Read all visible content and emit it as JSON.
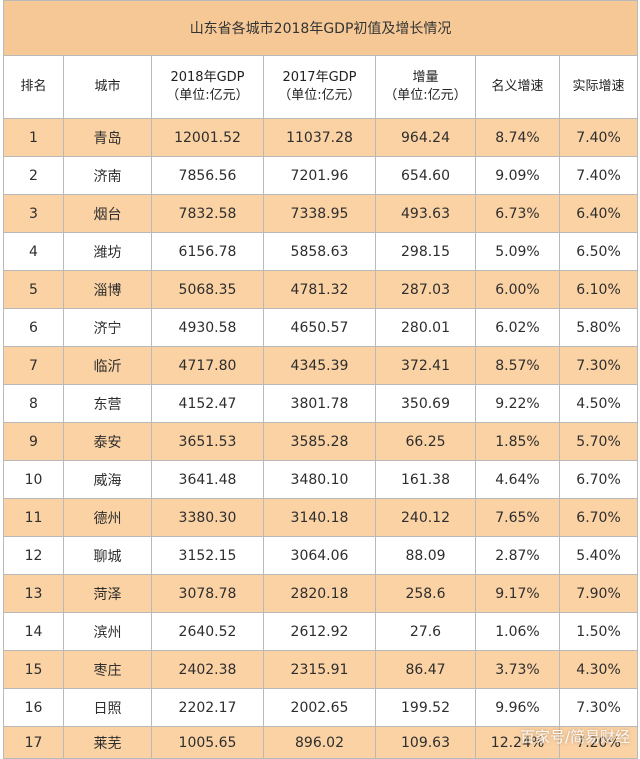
{
  "table": {
    "title": "山东省各城市2018年GDP初值及增长情况",
    "headers": [
      {
        "line1": "排名",
        "line2": ""
      },
      {
        "line1": "城市",
        "line2": ""
      },
      {
        "line1": "2018年GDP",
        "line2": "（单位:亿元）"
      },
      {
        "line1": "2017年GDP",
        "line2": "（单位:亿元）"
      },
      {
        "line1": "增量",
        "line2": "（单位:亿元）"
      },
      {
        "line1": "名义增速",
        "line2": ""
      },
      {
        "line1": "实际增速",
        "line2": ""
      }
    ],
    "rows": [
      {
        "rank": "1",
        "city": "青岛",
        "gdp2018": "12001.52",
        "gdp2017": "11037.28",
        "increase": "964.24",
        "nominal": "8.74%",
        "real": "7.40%"
      },
      {
        "rank": "2",
        "city": "济南",
        "gdp2018": "7856.56",
        "gdp2017": "7201.96",
        "increase": "654.60",
        "nominal": "9.09%",
        "real": "7.40%"
      },
      {
        "rank": "3",
        "city": "烟台",
        "gdp2018": "7832.58",
        "gdp2017": "7338.95",
        "increase": "493.63",
        "nominal": "6.73%",
        "real": "6.40%"
      },
      {
        "rank": "4",
        "city": "潍坊",
        "gdp2018": "6156.78",
        "gdp2017": "5858.63",
        "increase": "298.15",
        "nominal": "5.09%",
        "real": "6.50%"
      },
      {
        "rank": "5",
        "city": "淄博",
        "gdp2018": "5068.35",
        "gdp2017": "4781.32",
        "increase": "287.03",
        "nominal": "6.00%",
        "real": "6.10%"
      },
      {
        "rank": "6",
        "city": "济宁",
        "gdp2018": "4930.58",
        "gdp2017": "4650.57",
        "increase": "280.01",
        "nominal": "6.02%",
        "real": "5.80%"
      },
      {
        "rank": "7",
        "city": "临沂",
        "gdp2018": "4717.80",
        "gdp2017": "4345.39",
        "increase": "372.41",
        "nominal": "8.57%",
        "real": "7.30%"
      },
      {
        "rank": "8",
        "city": "东营",
        "gdp2018": "4152.47",
        "gdp2017": "3801.78",
        "increase": "350.69",
        "nominal": "9.22%",
        "real": "4.50%"
      },
      {
        "rank": "9",
        "city": "泰安",
        "gdp2018": "3651.53",
        "gdp2017": "3585.28",
        "increase": "66.25",
        "nominal": "1.85%",
        "real": "5.70%"
      },
      {
        "rank": "10",
        "city": "威海",
        "gdp2018": "3641.48",
        "gdp2017": "3480.10",
        "increase": "161.38",
        "nominal": "4.64%",
        "real": "6.70%"
      },
      {
        "rank": "11",
        "city": "德州",
        "gdp2018": "3380.30",
        "gdp2017": "3140.18",
        "increase": "240.12",
        "nominal": "7.65%",
        "real": "6.70%"
      },
      {
        "rank": "12",
        "city": "聊城",
        "gdp2018": "3152.15",
        "gdp2017": "3064.06",
        "increase": "88.09",
        "nominal": "2.87%",
        "real": "5.40%"
      },
      {
        "rank": "13",
        "city": "菏泽",
        "gdp2018": "3078.78",
        "gdp2017": "2820.18",
        "increase": "258.6",
        "nominal": "9.17%",
        "real": "7.90%"
      },
      {
        "rank": "14",
        "city": "滨州",
        "gdp2018": "2640.52",
        "gdp2017": "2612.92",
        "increase": "27.6",
        "nominal": "1.06%",
        "real": "1.50%"
      },
      {
        "rank": "15",
        "city": "枣庄",
        "gdp2018": "2402.38",
        "gdp2017": "2315.91",
        "increase": "86.47",
        "nominal": "3.73%",
        "real": "4.30%"
      },
      {
        "rank": "16",
        "city": "日照",
        "gdp2018": "2202.17",
        "gdp2017": "2002.65",
        "increase": "199.52",
        "nominal": "9.96%",
        "real": "7.30%"
      },
      {
        "rank": "17",
        "city": "莱芜",
        "gdp2018": "1005.65",
        "gdp2017": "896.02",
        "increase": "109.63",
        "nominal": "12.24%",
        "real": "7.20%"
      }
    ]
  },
  "watermark": "百家号/简易财经",
  "colors": {
    "header_band": "#f6c896",
    "row_highlight": "#fbd2a4",
    "row_plain": "#ffffff",
    "grid": "#b9b9b9"
  }
}
